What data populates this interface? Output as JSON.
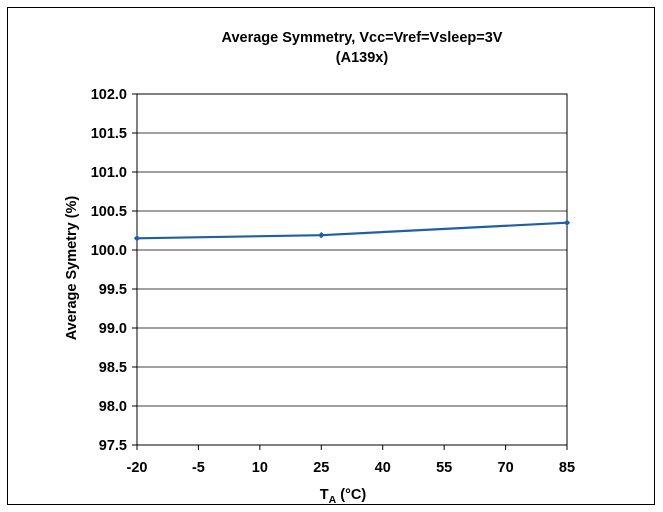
{
  "chart_data": {
    "type": "line",
    "title": "Average Symmetry, Vcc=Vref=Vsleep=3V",
    "subtitle": "(A139x)",
    "xlabel_main": "T",
    "xlabel_sub": "A",
    "xlabel_unit": " (°C)",
    "ylabel": "Average Symetry (%)",
    "x_tick_labels": [
      "-20",
      "-5",
      "10",
      "25",
      "40",
      "55",
      "70",
      "85"
    ],
    "xlim": [
      -20,
      85
    ],
    "ylim": [
      97.5,
      102.0
    ],
    "y_tick_values": [
      97.5,
      98.0,
      98.5,
      99.0,
      99.5,
      100.0,
      100.5,
      101.0,
      101.5,
      102.0
    ],
    "y_tick_labels": [
      "97.5",
      "98.0",
      "98.5",
      "99.0",
      "99.5",
      "100.0",
      "100.5",
      "101.0",
      "101.5",
      "102.0"
    ],
    "grid": true,
    "series": [
      {
        "x": [
          -20,
          25,
          85
        ],
        "y": [
          100.15,
          100.19,
          100.35
        ],
        "color": "#1f5fa6"
      }
    ]
  }
}
